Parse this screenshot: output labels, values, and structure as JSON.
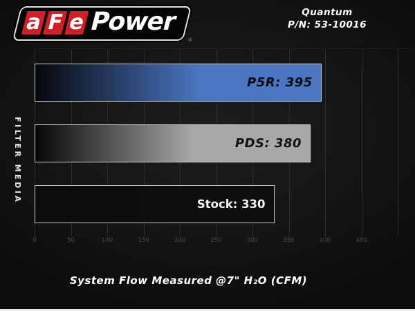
{
  "header": {
    "logo": {
      "blocks": [
        "a",
        "F",
        "e"
      ],
      "wordmark": "Power",
      "registered": "®",
      "red": "#d01f27"
    },
    "product": {
      "line1": "Quantum",
      "line2": "P/N: 53-10016"
    }
  },
  "chart_data": {
    "type": "bar",
    "orientation": "horizontal",
    "title": "",
    "ylabel": "FILTER MEDIA",
    "xlabel": "System Flow Measured @7\" H₂O (CFM)",
    "categories": [
      "P5R",
      "PDS",
      "Stock"
    ],
    "values": [
      395,
      380,
      330
    ],
    "xlim": [
      0,
      519
    ],
    "xticks": [
      0,
      50,
      100,
      150,
      200,
      250,
      300,
      350,
      400,
      450
    ],
    "grid": true,
    "grid_step": 50,
    "legend": false,
    "bars": [
      {
        "category": "P5R",
        "value": 395,
        "label": "P5R: 395",
        "color_start": "#05070b",
        "color_end": "#4a76c2",
        "label_color": "#0a0d14",
        "label_style": "techno"
      },
      {
        "category": "PDS",
        "value": 380,
        "label": "PDS: 380",
        "color_start": "#070707",
        "color_end": "#a9a9a9",
        "label_color": "#121212",
        "label_style": "techno"
      },
      {
        "category": "Stock",
        "value": 330,
        "label": "Stock: 330",
        "color_start": "#0b0b0b",
        "color_end": "#0e0e0e",
        "label_color": "#f5f5f5",
        "label_style": "plain"
      }
    ]
  },
  "colors": {
    "background": "#151515",
    "grid": "#2d2d2d",
    "tick_label": "#4c4c4c",
    "bar_border": "#cfcfcf",
    "text": "#ffffff"
  }
}
